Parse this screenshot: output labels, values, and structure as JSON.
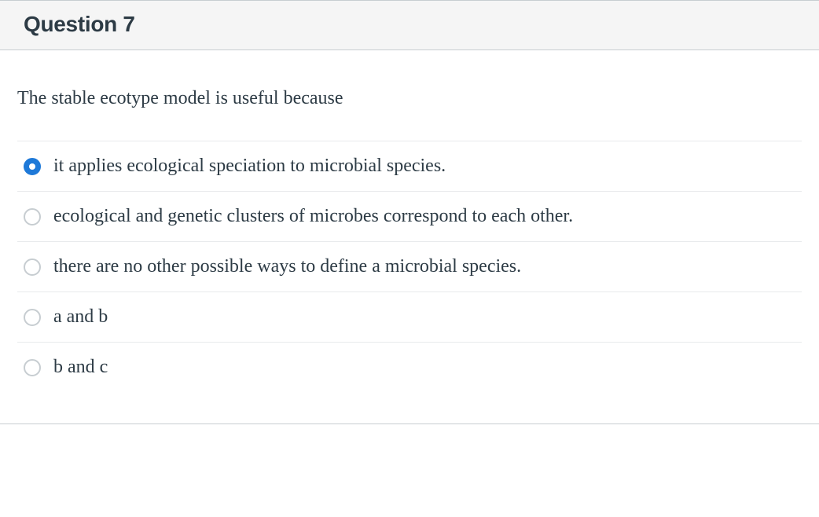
{
  "header": {
    "title": "Question 7"
  },
  "question": {
    "prompt": "The stable ecotype model is useful because"
  },
  "options": [
    {
      "label": "it applies ecological speciation to microbial species.",
      "selected": true
    },
    {
      "label": "ecological and genetic clusters of microbes correspond to each other.",
      "selected": false
    },
    {
      "label": "there are no other possible ways to define a microbial species.",
      "selected": false
    },
    {
      "label": "a and b",
      "selected": false
    },
    {
      "label": "b and c",
      "selected": false
    }
  ],
  "colors": {
    "header_bg": "#f5f5f5",
    "border": "#c7cdd1",
    "text": "#2d3b45",
    "radio_unselected_border": "#c7cdd1",
    "radio_selected": "#1e79d8",
    "option_divider": "#e8eaec"
  },
  "typography": {
    "title_fontsize": 28,
    "title_weight": 700,
    "body_fontsize": 24,
    "body_family": "serif"
  }
}
